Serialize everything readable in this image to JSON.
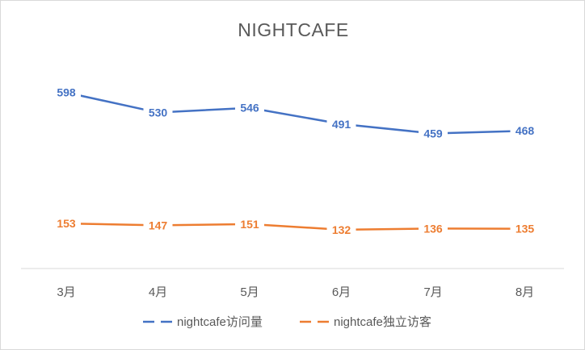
{
  "chart_data": {
    "type": "line",
    "title": "NIGHTCAFE",
    "categories": [
      "3月",
      "4月",
      "5月",
      "6月",
      "7月",
      "8月"
    ],
    "series": [
      {
        "name": "nightcafe访问量",
        "color": "#4472C4",
        "values": [
          598,
          530,
          546,
          491,
          459,
          468
        ]
      },
      {
        "name": "nightcafe独立访客",
        "color": "#ED7D31",
        "values": [
          153,
          147,
          151,
          132,
          136,
          135
        ]
      }
    ],
    "ylim": [
      0,
      700
    ],
    "grid": false,
    "legend": "bottom",
    "data_labels": true
  }
}
